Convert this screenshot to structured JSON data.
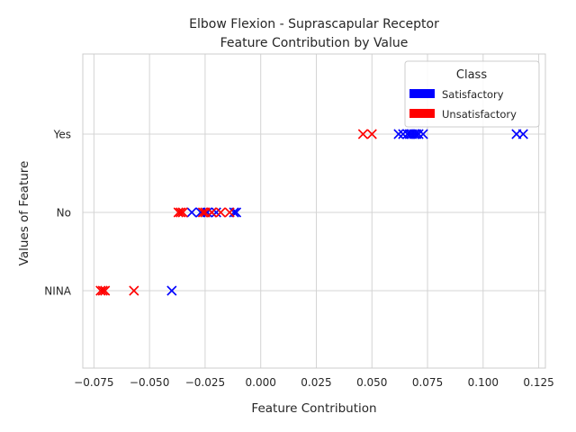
{
  "chart_data": {
    "type": "scatter",
    "title_line1": "Elbow Flexion - Suprascapular Receptor",
    "title_line2": "Feature Contribution by Value",
    "xlabel": "Feature Contribution",
    "ylabel": "Values of Feature",
    "xlim": [
      -0.08,
      0.128
    ],
    "x_ticks": [
      -0.075,
      -0.05,
      -0.025,
      0.0,
      0.025,
      0.05,
      0.075,
      0.1,
      0.125
    ],
    "x_tick_labels": [
      "−0.075",
      "−0.050",
      "−0.025",
      "0.000",
      "0.025",
      "0.050",
      "0.075",
      "0.100",
      "0.125"
    ],
    "categories": [
      "NINA",
      "No",
      "Yes"
    ],
    "grid": true,
    "legend": {
      "title": "Class",
      "position": "top-right",
      "entries": [
        {
          "label": "Satisfactory",
          "color": "#0000ff"
        },
        {
          "label": "Unsatisfactory",
          "color": "#ff0000"
        }
      ]
    },
    "marker": "x",
    "series": [
      {
        "name": "Satisfactory",
        "color": "#0000ff",
        "points": [
          {
            "x": -0.04,
            "y": "NINA"
          },
          {
            "x": -0.031,
            "y": "No"
          },
          {
            "x": -0.027,
            "y": "No"
          },
          {
            "x": -0.024,
            "y": "No"
          },
          {
            "x": -0.022,
            "y": "No"
          },
          {
            "x": -0.02,
            "y": "No"
          },
          {
            "x": -0.012,
            "y": "No"
          },
          {
            "x": -0.011,
            "y": "No"
          },
          {
            "x": 0.062,
            "y": "Yes"
          },
          {
            "x": 0.064,
            "y": "Yes"
          },
          {
            "x": 0.066,
            "y": "Yes"
          },
          {
            "x": 0.067,
            "y": "Yes"
          },
          {
            "x": 0.068,
            "y": "Yes"
          },
          {
            "x": 0.069,
            "y": "Yes"
          },
          {
            "x": 0.07,
            "y": "Yes"
          },
          {
            "x": 0.071,
            "y": "Yes"
          },
          {
            "x": 0.073,
            "y": "Yes"
          },
          {
            "x": 0.115,
            "y": "Yes"
          },
          {
            "x": 0.118,
            "y": "Yes"
          }
        ]
      },
      {
        "name": "Unsatisfactory",
        "color": "#ff0000",
        "points": [
          {
            "x": -0.072,
            "y": "NINA"
          },
          {
            "x": -0.071,
            "y": "NINA"
          },
          {
            "x": -0.07,
            "y": "NINA"
          },
          {
            "x": -0.057,
            "y": "NINA"
          },
          {
            "x": -0.037,
            "y": "No"
          },
          {
            "x": -0.036,
            "y": "No"
          },
          {
            "x": -0.035,
            "y": "No"
          },
          {
            "x": -0.026,
            "y": "No"
          },
          {
            "x": -0.025,
            "y": "No"
          },
          {
            "x": -0.022,
            "y": "No"
          },
          {
            "x": -0.018,
            "y": "No"
          },
          {
            "x": -0.014,
            "y": "No"
          },
          {
            "x": 0.046,
            "y": "Yes"
          },
          {
            "x": 0.05,
            "y": "Yes"
          }
        ]
      }
    ]
  }
}
